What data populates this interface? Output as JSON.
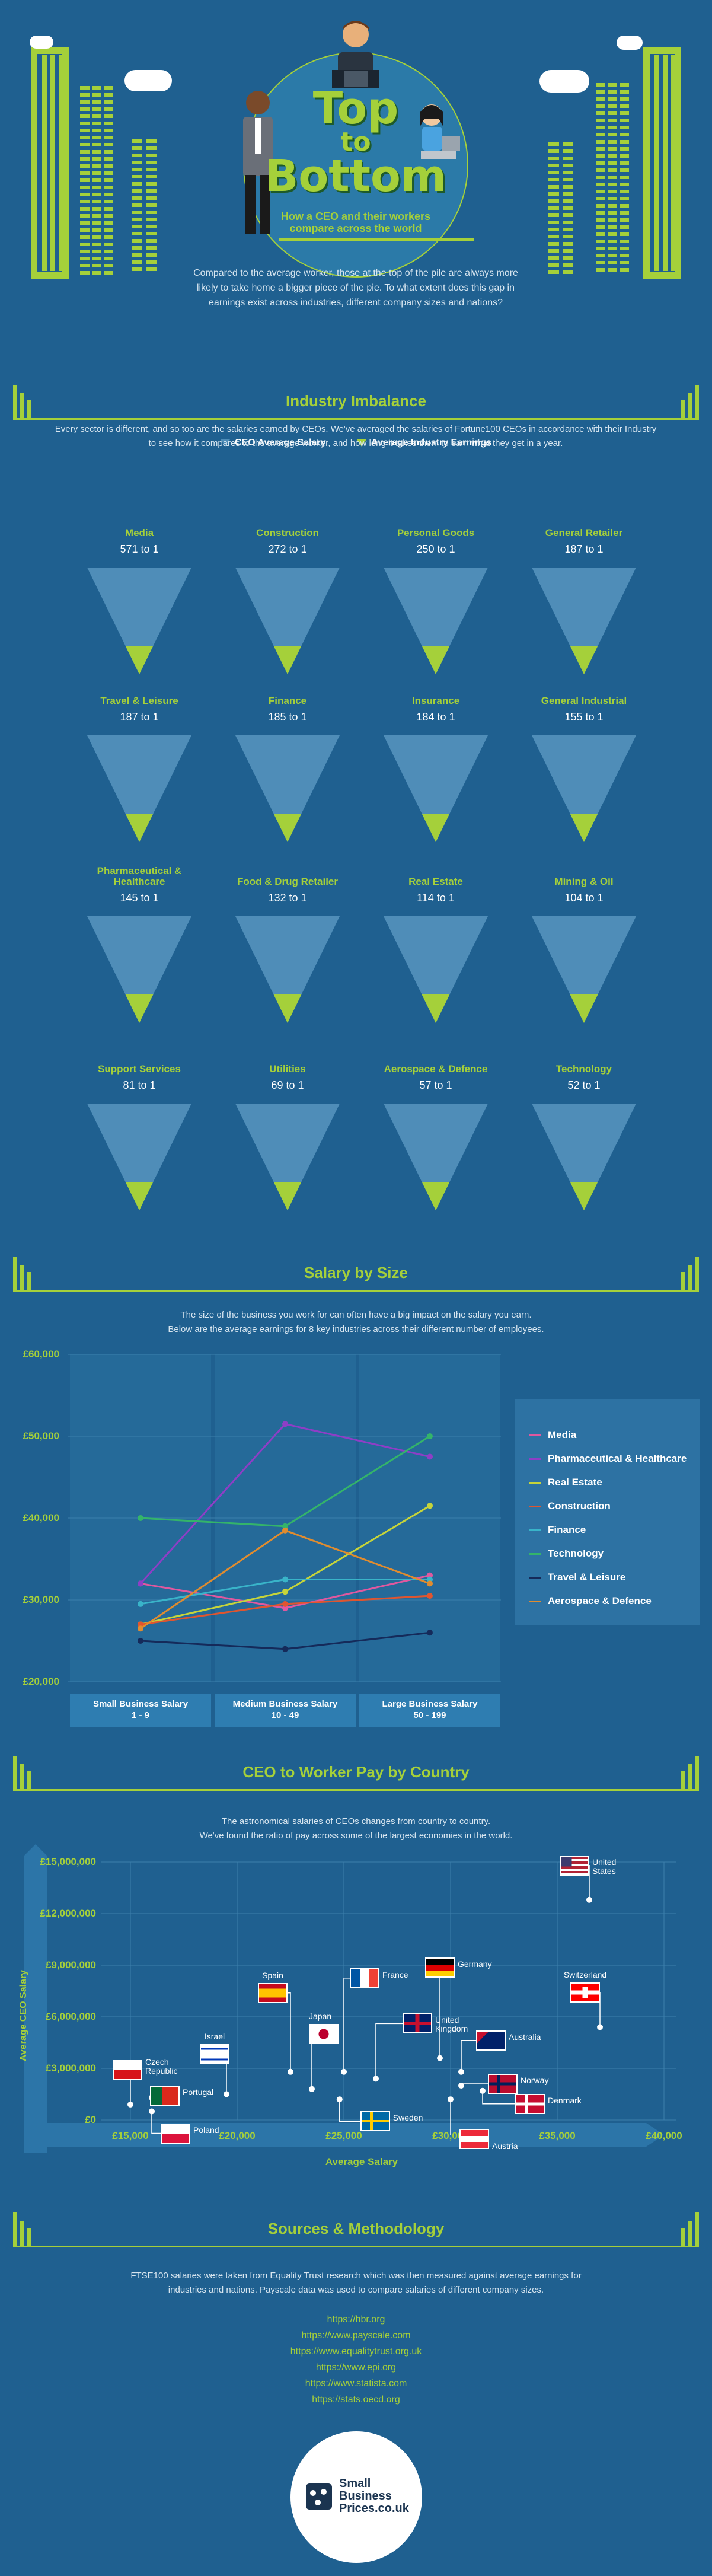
{
  "hero": {
    "title_top": "Top",
    "title_to": "to",
    "title_bottom": "Bottom",
    "subtitle": "How a CEO and their workers compare across the world"
  },
  "intro": "Compared to the average worker, those at the top of the pile are always more likely to take home a bigger piece of the pie. To what extent does this gap in earnings exist across industries, different company sizes and nations?",
  "industry": {
    "title": "Industry Imbalance",
    "legend_ceo": "CEO Average Salary",
    "legend_avg": "Average Industry Earnings",
    "description": "Every sector is different, and so too are the salaries earned by CEOs. We've averaged the salaries of Fortune100 CEOs in accordance with their Industry to see how it compares to the average worker, and how long it takes them to earn what they get in a year.",
    "sectors": [
      {
        "name": "Media",
        "ratio": "571 to 1",
        "value": 571
      },
      {
        "name": "Construction",
        "ratio": "272 to 1",
        "value": 272
      },
      {
        "name": "Personal Goods",
        "ratio": "250 to 1",
        "value": 250
      },
      {
        "name": "General Retailer",
        "ratio": "187 to 1",
        "value": 187
      },
      {
        "name": "Travel & Leisure",
        "ratio": "187 to 1",
        "value": 187
      },
      {
        "name": "Finance",
        "ratio": "185 to 1",
        "value": 185
      },
      {
        "name": "Insurance",
        "ratio": "184 to 1",
        "value": 184
      },
      {
        "name": "General Industrial",
        "ratio": "155 to 1",
        "value": 155
      },
      {
        "name": "Pharmaceutical & Healthcare",
        "ratio": "145 to 1",
        "value": 145
      },
      {
        "name": "Food & Drug Retailer",
        "ratio": "132 to 1",
        "value": 132
      },
      {
        "name": "Real Estate",
        "ratio": "114 to 1",
        "value": 114
      },
      {
        "name": "Mining & Oil",
        "ratio": "104 to 1",
        "value": 104
      },
      {
        "name": "Support Services",
        "ratio": "81 to 1",
        "value": 81
      },
      {
        "name": "Utilities",
        "ratio": "69 to 1",
        "value": 69
      },
      {
        "name": "Aerospace & Defence",
        "ratio": "57 to 1",
        "value": 57
      },
      {
        "name": "Technology",
        "ratio": "52 to 1",
        "value": 52
      }
    ]
  },
  "size": {
    "title": "Salary by Size",
    "description_1": "The size of the business you work for can often have a big impact on the salary you earn.",
    "description_2": "Below are the average earnings for 8 key industries across their different number of employees."
  },
  "country": {
    "title": "CEO to Worker Pay by Country",
    "description_1": "The astronomical salaries of CEOs changes from country to country.",
    "description_2": "We've found the ratio of pay across some of the largest economies in the world."
  },
  "sources": {
    "title": "Sources & Methodology",
    "text_1": "FTSE100 salaries were taken from Equality Trust research which was then measured against average earnings for",
    "text_2": "industries and nations. Payscale data was used to compare salaries of different company sizes.",
    "links": [
      "https://hbr.org",
      "https://www.payscale.com",
      "https://www.equalitytrust.org.uk",
      "https://www.epi.org",
      "https://www.statista.com",
      "https://stats.oecd.org"
    ]
  },
  "logo": {
    "line1": "Small",
    "line2": "Business",
    "line3": "Prices.co.uk"
  },
  "colors": {
    "background": "#1f6090",
    "accent": "#a5d03a",
    "triangle": "#4f8db8"
  },
  "chart_data": [
    {
      "type": "line",
      "title": "Salary by Size",
      "categories": [
        "Small Business Salary 1 - 9",
        "Medium Business Salary 10 - 49",
        "Large Business Salary 50 - 199"
      ],
      "category_lines": [
        [
          "Small Business Salary",
          "1 - 9"
        ],
        [
          "Medium Business Salary",
          "10 - 49"
        ],
        [
          "Large Business Salary",
          "50 - 199"
        ]
      ],
      "yticks": [
        "£60,000",
        "£50,000",
        "£40,000",
        "£30,000",
        "£20,000"
      ],
      "ylim": [
        20000,
        60000
      ],
      "legend_position": "right",
      "series": [
        {
          "name": "Media",
          "color": "#e0589f",
          "values": [
            32000,
            29000,
            33000
          ]
        },
        {
          "name": "Pharmaceutical & Healthcare",
          "color": "#8e3ec6",
          "values": [
            32000,
            51500,
            47500
          ]
        },
        {
          "name": "Real Estate",
          "color": "#c6d43a",
          "values": [
            27000,
            31000,
            41500
          ]
        },
        {
          "name": "Construction",
          "color": "#e0552f",
          "values": [
            27000,
            29500,
            30500
          ]
        },
        {
          "name": "Finance",
          "color": "#39b4c9",
          "values": [
            29500,
            32500,
            32500
          ]
        },
        {
          "name": "Technology",
          "color": "#34b46a",
          "values": [
            40000,
            39000,
            50000
          ]
        },
        {
          "name": "Travel & Leisure",
          "color": "#152a5a",
          "values": [
            25000,
            24000,
            26000
          ]
        },
        {
          "name": "Aerospace & Defence",
          "color": "#e08c2f",
          "values": [
            26500,
            38500,
            32000
          ]
        }
      ]
    },
    {
      "type": "scatter",
      "title": "CEO to Worker Pay by Country",
      "xlabel": "Average Salary",
      "ylabel": "Average CEO Salary",
      "xticks": [
        "£15,000",
        "£20,000",
        "£25,000",
        "£30,000",
        "£35,000",
        "£40,000"
      ],
      "yticks": [
        "£15,000,000",
        "£12,000,000",
        "£9,000,000",
        "£6,000,000",
        "£3,000,000",
        "£0"
      ],
      "xlim": [
        15000,
        40000
      ],
      "ylim": [
        0,
        15000000
      ],
      "points": [
        {
          "country": "Czech Republic",
          "x": 15000,
          "y": 900000,
          "flag": "czech"
        },
        {
          "country": "Portugal",
          "x": 16000,
          "y": 1300000,
          "flag": "portugal"
        },
        {
          "country": "Poland",
          "x": 16000,
          "y": 500000,
          "flag": "poland"
        },
        {
          "country": "Israel",
          "x": 19500,
          "y": 1500000,
          "flag": "israel"
        },
        {
          "country": "Spain",
          "x": 22500,
          "y": 2800000,
          "flag": "spain"
        },
        {
          "country": "Japan",
          "x": 23500,
          "y": 1800000,
          "flag": "japan"
        },
        {
          "country": "France",
          "x": 25000,
          "y": 2800000,
          "flag": "france"
        },
        {
          "country": "Sweden",
          "x": 24800,
          "y": 1200000,
          "flag": "sweden"
        },
        {
          "country": "United Kingdom",
          "x": 26500,
          "y": 2400000,
          "flag": "uk"
        },
        {
          "country": "Germany",
          "x": 29500,
          "y": 3600000,
          "flag": "germany"
        },
        {
          "country": "Australia",
          "x": 30500,
          "y": 2800000,
          "flag": "australia"
        },
        {
          "country": "Norway",
          "x": 30500,
          "y": 2000000,
          "flag": "norway"
        },
        {
          "country": "Denmark",
          "x": 31500,
          "y": 1700000,
          "flag": "denmark"
        },
        {
          "country": "Austria",
          "x": 30000,
          "y": 1200000,
          "flag": "austria"
        },
        {
          "country": "Switzerland",
          "x": 37000,
          "y": 5400000,
          "flag": "switzerland"
        },
        {
          "country": "United States",
          "x": 36500,
          "y": 12800000,
          "flag": "usa"
        }
      ]
    }
  ]
}
